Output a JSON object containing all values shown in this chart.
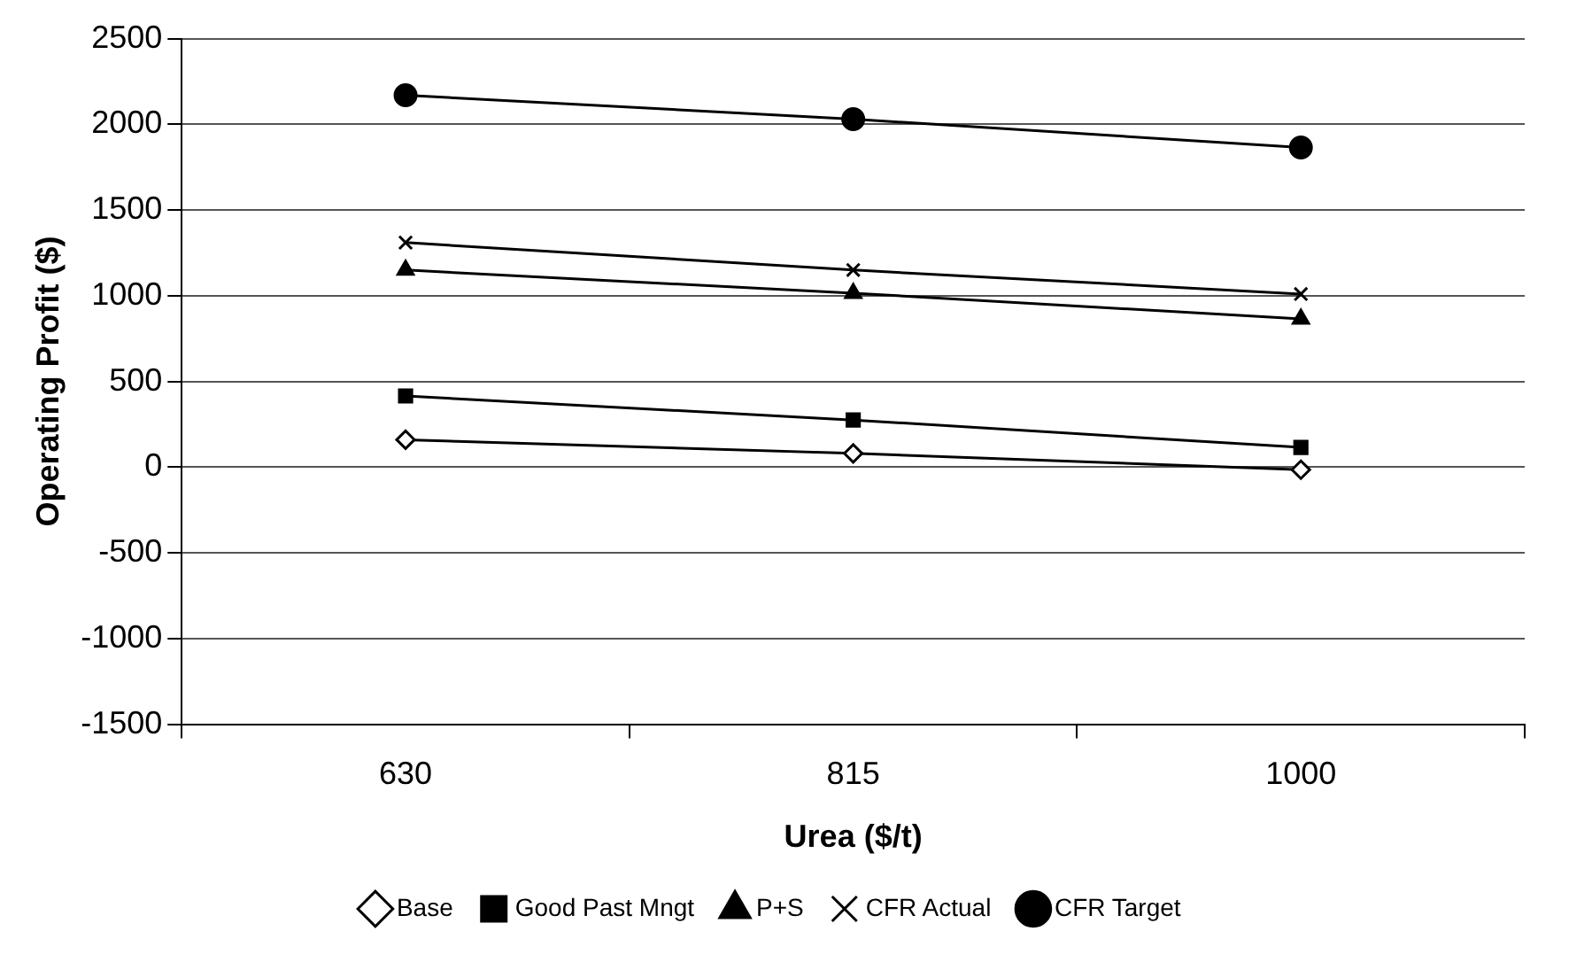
{
  "chart_data": {
    "type": "line",
    "xlabel": "Urea ($/t)",
    "ylabel": "Operating Profit ($)",
    "categories": [
      "630",
      "815",
      "1000"
    ],
    "series": [
      {
        "name": "Base",
        "color": "#000000",
        "marker": "diamond",
        "values": [
          160,
          80,
          -15
        ]
      },
      {
        "name": "Good Past Mngt",
        "color": "#000000",
        "marker": "square",
        "values": [
          415,
          275,
          115
        ]
      },
      {
        "name": "P+S",
        "color": "#000000",
        "marker": "triangle",
        "values": [
          1150,
          1015,
          865
        ]
      },
      {
        "name": "CFR Actual",
        "color": "#000000",
        "marker": "cross",
        "values": [
          1310,
          1150,
          1010
        ]
      },
      {
        "name": "CFR Target",
        "color": "#000000",
        "marker": "circle",
        "values": [
          2170,
          2030,
          1865
        ]
      }
    ],
    "ylim": [
      -1500,
      2500
    ],
    "yticks": [
      -1500,
      -1000,
      -500,
      0,
      500,
      1000,
      1500,
      2000,
      2500
    ],
    "grid": "y",
    "legend": "bottom",
    "line_style": "solid"
  }
}
